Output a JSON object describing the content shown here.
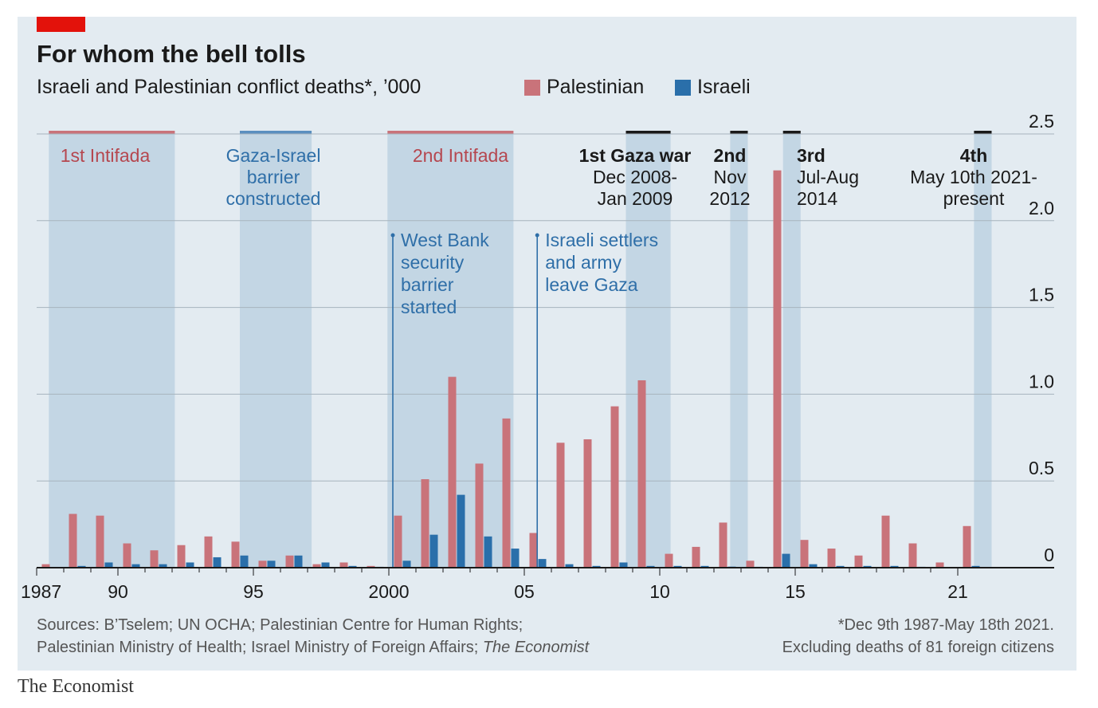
{
  "title": "For whom the bell tolls",
  "subtitle": "Israeli and Palestinian conflict deaths*, ’000",
  "legend": [
    {
      "label": "Palestinian",
      "color": "#c9737a"
    },
    {
      "label": "Israeli",
      "color": "#2a6faa"
    }
  ],
  "sources_line1": "Sources: B’Tselem; UN OCHA; Palestinian Centre for Human Rights;",
  "sources_line2_prefix": "Palestinian Ministry of Health; Israel Ministry of Foreign Affairs; ",
  "sources_line2_italic": "The Economist",
  "footnote_line1": "*Dec 9th 1987-May 18th 2021.",
  "footnote_line2": "Excluding deaths of 81 foreign citizens",
  "brand": "The Economist",
  "chart_data": {
    "type": "bar",
    "x": [
      1987,
      1988,
      1989,
      1990,
      1991,
      1992,
      1993,
      1994,
      1995,
      1996,
      1997,
      1998,
      1999,
      2000,
      2001,
      2002,
      2003,
      2004,
      2005,
      2006,
      2007,
      2008,
      2009,
      2010,
      2011,
      2012,
      2013,
      2014,
      2015,
      2016,
      2017,
      2018,
      2019,
      2020,
      2021
    ],
    "x_tick_labels": [
      {
        "x": 1987,
        "label": "1987"
      },
      {
        "x": 1990,
        "label": "90"
      },
      {
        "x": 1995,
        "label": "95"
      },
      {
        "x": 2000,
        "label": "2000"
      },
      {
        "x": 2005,
        "label": "05"
      },
      {
        "x": 2010,
        "label": "10"
      },
      {
        "x": 2015,
        "label": "15"
      },
      {
        "x": 2021,
        "label": "21"
      }
    ],
    "y_ticks": [
      {
        "value": 0,
        "label": "0"
      },
      {
        "value": 0.5,
        "label": "0.5"
      },
      {
        "value": 1.0,
        "label": "1.0"
      },
      {
        "value": 1.5,
        "label": "1.5"
      },
      {
        "value": 2.0,
        "label": "2.0"
      },
      {
        "value": 2.5,
        "label": "2.5"
      }
    ],
    "ylim": [
      0,
      2.5
    ],
    "grid": true,
    "legend_position": "top",
    "series": [
      {
        "name": "Palestinian",
        "color": "#c9737a",
        "values": [
          0.02,
          0.31,
          0.3,
          0.14,
          0.1,
          0.13,
          0.18,
          0.15,
          0.04,
          0.07,
          0.02,
          0.03,
          0.01,
          0.3,
          0.51,
          1.1,
          0.6,
          0.86,
          0.2,
          0.72,
          0.74,
          0.93,
          1.08,
          0.08,
          0.12,
          0.26,
          0.04,
          2.29,
          0.16,
          0.11,
          0.07,
          0.3,
          0.14,
          0.03,
          0.24
        ]
      },
      {
        "name": "Israeli",
        "color": "#2a6faa",
        "values": [
          0.001,
          0.01,
          0.03,
          0.02,
          0.02,
          0.03,
          0.06,
          0.07,
          0.04,
          0.07,
          0.03,
          0.01,
          0.005,
          0.04,
          0.19,
          0.42,
          0.18,
          0.11,
          0.05,
          0.02,
          0.01,
          0.03,
          0.01,
          0.01,
          0.01,
          0.006,
          0.005,
          0.08,
          0.02,
          0.01,
          0.01,
          0.01,
          0.005,
          0.003,
          0.01
        ]
      }
    ],
    "periods": [
      {
        "name": "1st Intifada",
        "start": 1987.45,
        "end": 1992.1,
        "type": "uprising",
        "label_lines": [
          "1st Intifada"
        ]
      },
      {
        "name": "Gaza-Israel barrier constructed",
        "start": 1994.5,
        "end": 1997.15,
        "type": "barrier",
        "label_lines": [
          "Gaza-Israel",
          "barrier",
          "constructed"
        ]
      },
      {
        "name": "2nd Intifada",
        "start": 1999.95,
        "end": 2004.6,
        "type": "uprising",
        "label_lines": [
          "2nd Intifada"
        ]
      },
      {
        "name": "1st Gaza war",
        "start": 2008.75,
        "end": 2010.4,
        "type": "war",
        "label_lines": [
          "1st Gaza war",
          "Dec 2008-",
          "Jan 2009"
        ]
      },
      {
        "name": "2nd",
        "start": 2012.6,
        "end": 2013.25,
        "type": "war",
        "label_lines": [
          "2nd",
          "Nov",
          "2012"
        ]
      },
      {
        "name": "3rd",
        "start": 2014.55,
        "end": 2015.2,
        "type": "war",
        "label_lines": [
          "3rd",
          "Jul-Aug",
          "2014"
        ]
      },
      {
        "name": "4th",
        "start": 2021.6,
        "end": 2022.25,
        "type": "war",
        "label_lines": [
          "4th",
          "May 10th 2021-",
          "present"
        ]
      }
    ],
    "annotations": [
      {
        "x": 2000.0,
        "y_top": 2.05,
        "label_lines": [
          "West Bank",
          "security",
          "barrier",
          "started"
        ]
      },
      {
        "x": 2005.33,
        "y_top": 2.05,
        "label_lines": [
          "Israeli settlers",
          "and army",
          "leave Gaza"
        ]
      }
    ]
  }
}
